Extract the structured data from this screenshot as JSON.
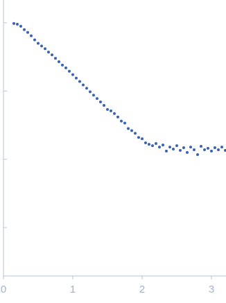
{
  "chart_data": {
    "type": "scatter",
    "color": "#3b63b3",
    "log_y": true,
    "xlim": [
      0,
      3.21
    ],
    "xticks": [
      0,
      1,
      2,
      3
    ],
    "ylim": [
      0.000195,
      2.16
    ],
    "yticks": [
      0.001,
      0.01,
      0.1,
      1
    ],
    "x": [
      0.15,
      0.2,
      0.25,
      0.3,
      0.35,
      0.4,
      0.45,
      0.5,
      0.55,
      0.6,
      0.65,
      0.7,
      0.75,
      0.8,
      0.85,
      0.9,
      0.95,
      1.0,
      1.05,
      1.1,
      1.15,
      1.2,
      1.25,
      1.3,
      1.35,
      1.4,
      1.45,
      1.5,
      1.55,
      1.6,
      1.65,
      1.7,
      1.75,
      1.8,
      1.85,
      1.9,
      1.95,
      2.0,
      2.05,
      2.1,
      2.15,
      2.2,
      2.25,
      2.3,
      2.35,
      2.4,
      2.45,
      2.5,
      2.55,
      2.6,
      2.65,
      2.7,
      2.75,
      2.8,
      2.85,
      2.9,
      2.95,
      3.0,
      3.05,
      3.1,
      3.15,
      3.2
    ],
    "values": [
      0.977,
      0.955,
      0.891,
      0.794,
      0.724,
      0.646,
      0.562,
      0.501,
      0.457,
      0.417,
      0.372,
      0.339,
      0.302,
      0.269,
      0.24,
      0.219,
      0.195,
      0.174,
      0.155,
      0.138,
      0.123,
      0.11,
      0.0977,
      0.0871,
      0.0776,
      0.0692,
      0.0617,
      0.0537,
      0.0513,
      0.0468,
      0.0417,
      0.0363,
      0.0339,
      0.0282,
      0.0263,
      0.024,
      0.0209,
      0.02,
      0.0174,
      0.0166,
      0.0158,
      0.017,
      0.0151,
      0.0162,
      0.0132,
      0.0151,
      0.0141,
      0.0158,
      0.0135,
      0.0148,
      0.0126,
      0.0151,
      0.0138,
      0.0117,
      0.0155,
      0.0138,
      0.0145,
      0.0132,
      0.0148,
      0.0138,
      0.0151,
      0.0135
    ]
  }
}
